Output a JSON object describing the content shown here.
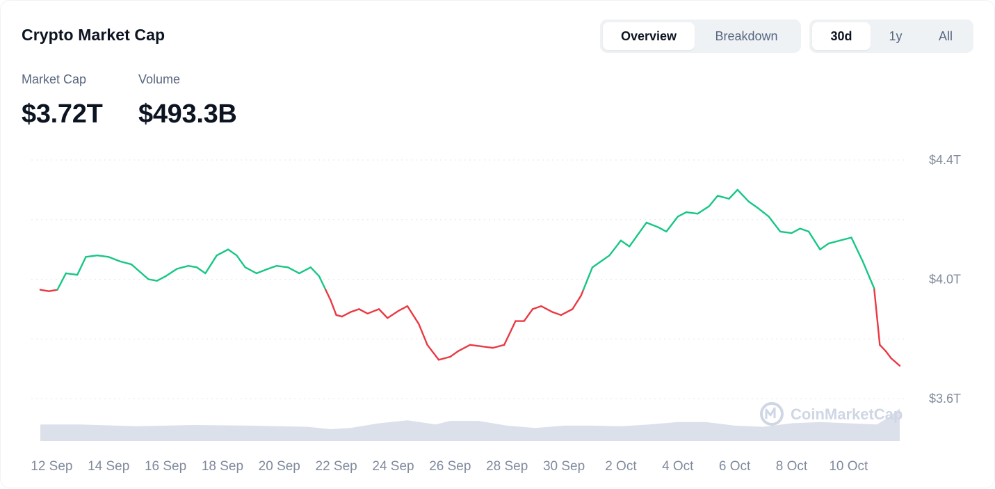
{
  "header": {
    "title": "Crypto Market Cap",
    "view_tabs": [
      {
        "label": "Overview",
        "active": true
      },
      {
        "label": "Breakdown",
        "active": false
      }
    ],
    "range_tabs": [
      {
        "label": "30d",
        "active": true
      },
      {
        "label": "1y",
        "active": false
      },
      {
        "label": "All",
        "active": false
      }
    ]
  },
  "stats": {
    "market_cap": {
      "label": "Market Cap",
      "value": "$3.72T"
    },
    "volume": {
      "label": "Volume",
      "value": "$493.3B"
    }
  },
  "watermark": {
    "text": "CoinMarketCap"
  },
  "colors": {
    "up": "#16c784",
    "down": "#ea3943",
    "volume": "#cfd6e4",
    "grid": "#e3e7ee",
    "text_muted": "#808a9d"
  },
  "chart_data": {
    "type": "line",
    "title": "",
    "xlabel": "",
    "ylabel": "",
    "x_unit": "days since start of window",
    "x_ticks": [
      {
        "x": 1,
        "label": "12 Sep"
      },
      {
        "x": 3,
        "label": "14 Sep"
      },
      {
        "x": 5,
        "label": "16 Sep"
      },
      {
        "x": 7,
        "label": "18 Sep"
      },
      {
        "x": 9,
        "label": "20 Sep"
      },
      {
        "x": 11,
        "label": "22 Sep"
      },
      {
        "x": 13,
        "label": "24 Sep"
      },
      {
        "x": 15,
        "label": "26 Sep"
      },
      {
        "x": 17,
        "label": "28 Sep"
      },
      {
        "x": 19,
        "label": "30 Sep"
      },
      {
        "x": 21,
        "label": "2 Oct"
      },
      {
        "x": 23,
        "label": "4 Oct"
      },
      {
        "x": 25,
        "label": "6 Oct"
      },
      {
        "x": 27,
        "label": "8 Oct"
      },
      {
        "x": 29,
        "label": "10 Oct"
      }
    ],
    "y_ticks": [
      {
        "value": 4.4,
        "label": "$4.4T"
      },
      {
        "value": 4.0,
        "label": "$4.0T"
      },
      {
        "value": 3.6,
        "label": "$3.6T"
      }
    ],
    "ylim": [
      3.6,
      4.4
    ],
    "xlim": [
      0.6,
      30.8
    ],
    "gridlines": [
      3.6,
      3.8,
      4.0,
      4.2,
      4.4
    ],
    "baseline": 3.965,
    "series": [
      {
        "x": [
          0.6,
          0.9,
          1.2,
          1.5,
          1.9,
          2.2,
          2.6,
          3.0,
          3.4,
          3.8,
          4.1,
          4.4,
          4.7,
          5.0,
          5.4,
          5.8,
          6.1,
          6.4,
          6.8,
          7.2,
          7.5,
          7.8,
          8.2,
          8.6,
          8.9,
          9.3,
          9.7,
          10.1,
          10.4,
          10.8,
          11.0,
          11.2,
          11.5,
          11.8,
          12.1,
          12.5,
          12.8,
          13.2,
          13.5,
          13.9,
          14.2,
          14.6,
          14.8,
          15.0,
          15.3,
          15.7,
          16.1,
          16.5,
          16.9,
          17.3,
          17.6,
          17.9,
          18.2,
          18.6,
          18.9,
          19.3,
          19.6,
          20.0,
          20.3,
          20.6,
          21.0,
          21.3,
          21.6,
          21.9,
          22.3,
          22.6,
          23.0,
          23.3,
          23.7,
          24.1,
          24.4,
          24.8,
          25.1,
          25.5,
          25.8,
          26.2,
          26.6,
          27.0,
          27.3,
          27.6,
          28.0,
          28.3,
          28.7,
          29.1,
          29.5,
          29.9,
          30.1,
          30.3,
          30.5,
          30.8
        ],
        "values": [
          3.965,
          3.96,
          3.965,
          4.02,
          4.015,
          4.075,
          4.08,
          4.075,
          4.06,
          4.05,
          4.025,
          4.0,
          3.995,
          4.01,
          4.035,
          4.045,
          4.04,
          4.02,
          4.08,
          4.1,
          4.08,
          4.04,
          4.02,
          4.035,
          4.045,
          4.04,
          4.02,
          4.04,
          4.01,
          3.93,
          3.88,
          3.875,
          3.89,
          3.9,
          3.885,
          3.9,
          3.87,
          3.895,
          3.91,
          3.85,
          3.78,
          3.73,
          3.735,
          3.74,
          3.76,
          3.78,
          3.775,
          3.77,
          3.78,
          3.86,
          3.86,
          3.9,
          3.91,
          3.89,
          3.88,
          3.9,
          3.945,
          4.04,
          4.06,
          4.08,
          4.13,
          4.11,
          4.15,
          4.19,
          4.175,
          4.16,
          4.21,
          4.225,
          4.22,
          4.245,
          4.28,
          4.27,
          4.3,
          4.26,
          4.24,
          4.21,
          4.16,
          4.155,
          4.17,
          4.16,
          4.1,
          4.12,
          4.13,
          4.14,
          4.06,
          3.97,
          3.78,
          3.76,
          3.735,
          3.71
        ]
      }
    ],
    "volume": {
      "x": [
        0.6,
        2.0,
        4.0,
        6.0,
        8.0,
        10.0,
        10.8,
        11.5,
        12.5,
        13.5,
        14.5,
        15.0,
        16.0,
        17.0,
        18.0,
        19.0,
        20.0,
        21.0,
        22.0,
        23.0,
        24.0,
        25.0,
        26.0,
        27.0,
        28.0,
        29.0,
        30.0,
        30.4,
        30.8
      ],
      "values": [
        28,
        28,
        25,
        27,
        26,
        24,
        20,
        22,
        30,
        35,
        28,
        34,
        34,
        26,
        22,
        26,
        26,
        25,
        28,
        32,
        32,
        26,
        24,
        30,
        32,
        30,
        28,
        40,
        55
      ]
    }
  }
}
